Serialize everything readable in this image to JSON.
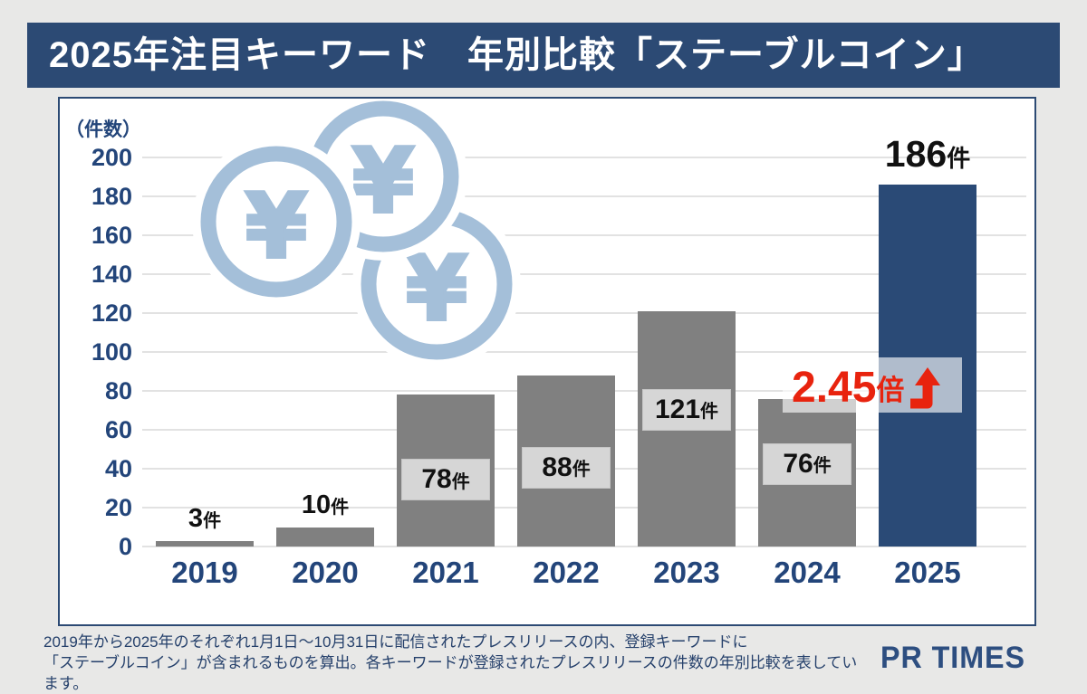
{
  "title": "2025年注目キーワード　年別比較「ステーブルコイン」",
  "chart_data": {
    "type": "bar",
    "title": "2025年注目キーワード　年別比較「ステーブルコイン」",
    "y_axis_unit_label": "（件数）",
    "unit_suffix": "件",
    "categories": [
      "2019",
      "2020",
      "2021",
      "2022",
      "2023",
      "2024",
      "2025"
    ],
    "values": [
      3,
      10,
      78,
      88,
      121,
      76,
      186
    ],
    "ylim": [
      0,
      200
    ],
    "ytick_step": 20,
    "grid": true,
    "legend": false,
    "label_positions": [
      "above",
      "above",
      "inside",
      "inside",
      "inside",
      "inside",
      "above"
    ],
    "highlight_index": 6,
    "bar_color": "#808080",
    "highlight_color": "#2a4a76",
    "annotation_on_highlight": "2.45倍 増加"
  },
  "annotation": {
    "value": "2.45",
    "unit": "倍",
    "color": "#e8230e"
  },
  "decoration": {
    "yen_symbol": "¥",
    "coin_color": "#a4bfd9"
  },
  "footer": {
    "line1": "2019年から2025年のそれぞれ1月1日～10月31日に配信されたプレスリリースの内、登録キーワードに",
    "line2": "「ステーブルコイン」が含まれるものを算出。各キーワードが登録されたプレスリリースの件数の年別比較を表しています。"
  },
  "logo_text": "PR TIMES",
  "colors": {
    "title_bar": "#2c4a74",
    "page_bg": "#e8e8e7",
    "panel_border": "#2c4a74",
    "grid_line": "#e2e2e2",
    "axis_text": "#23457a",
    "label_box_bg": "#d6d6d6",
    "accent_red": "#e8230e"
  }
}
